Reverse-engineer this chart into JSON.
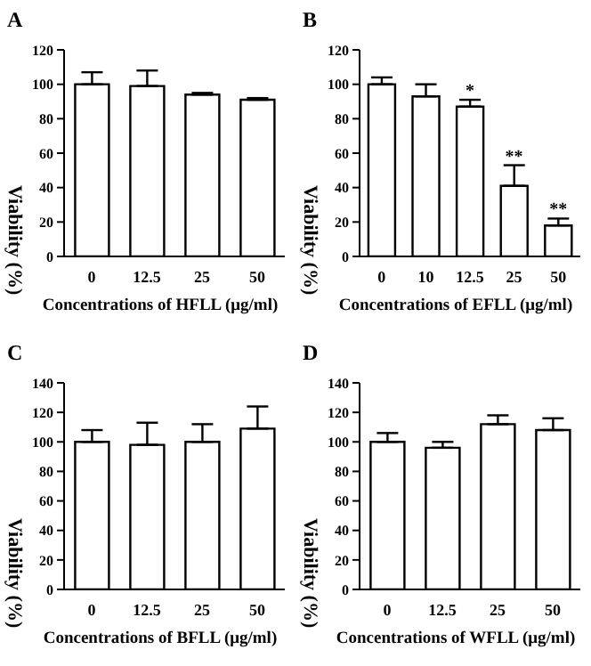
{
  "chart_data": [
    {
      "type": "bar",
      "title": "A",
      "xlabel": "Concentrations of HFLL (μg/ml)",
      "ylabel": "Viability (%)",
      "categories": [
        "0",
        "12.5",
        "25",
        "50"
      ],
      "values": [
        100,
        99,
        94,
        91
      ],
      "errors": [
        [
          100,
          107
        ],
        [
          99,
          108
        ],
        [
          94,
          95
        ],
        [
          91,
          92
        ]
      ],
      "color": "#ffffff",
      "ylim": [
        0,
        120
      ],
      "yticks": [
        0,
        20,
        40,
        60,
        80,
        100,
        120
      ],
      "grid": false,
      "legend": false
    },
    {
      "type": "bar",
      "title": "B",
      "xlabel": "Concentrations of EFLL (μg/ml)",
      "ylabel": "Viability (%)",
      "categories": [
        "0",
        "10",
        "12.5",
        "25",
        "50"
      ],
      "values": [
        100,
        93,
        87,
        41,
        18
      ],
      "errors": [
        [
          100,
          104
        ],
        [
          93,
          100
        ],
        [
          87,
          91
        ],
        [
          41,
          53
        ],
        [
          18,
          22
        ]
      ],
      "color": "#ffffff",
      "ylim": [
        0,
        120
      ],
      "yticks": [
        0,
        20,
        40,
        60,
        80,
        100,
        120
      ],
      "grid": false,
      "legend": false,
      "annotations": [
        {
          "text": "*",
          "x": "12.5",
          "y": 91
        },
        {
          "text": "**",
          "x": "25",
          "y": 53
        },
        {
          "text": "**",
          "x": "50",
          "y": 22
        }
      ]
    },
    {
      "type": "bar",
      "title": "C",
      "xlabel": "Concentrations of BFLL (μg/ml)",
      "ylabel": "Viability (%)",
      "categories": [
        "0",
        "12.5",
        "25",
        "50"
      ],
      "values": [
        100,
        98,
        100,
        109
      ],
      "errors": [
        [
          100,
          108
        ],
        [
          98,
          113
        ],
        [
          100,
          112
        ],
        [
          109,
          124
        ]
      ],
      "color": "#ffffff",
      "ylim": [
        0,
        140
      ],
      "yticks": [
        0,
        20,
        40,
        60,
        80,
        100,
        120,
        140
      ],
      "grid": false,
      "legend": false
    },
    {
      "type": "bar",
      "title": "D",
      "xlabel": "Concentrations of WFLL (μg/ml)",
      "ylabel": "Viability (%)",
      "categories": [
        "0",
        "12.5",
        "25",
        "50"
      ],
      "values": [
        100,
        96,
        112,
        108
      ],
      "errors": [
        [
          100,
          106
        ],
        [
          96,
          100
        ],
        [
          112,
          118
        ],
        [
          108,
          116
        ]
      ],
      "color": "#ffffff",
      "ylim": [
        0,
        140
      ],
      "yticks": [
        0,
        20,
        40,
        60,
        80,
        100,
        120,
        140
      ],
      "grid": false,
      "legend": false
    }
  ]
}
